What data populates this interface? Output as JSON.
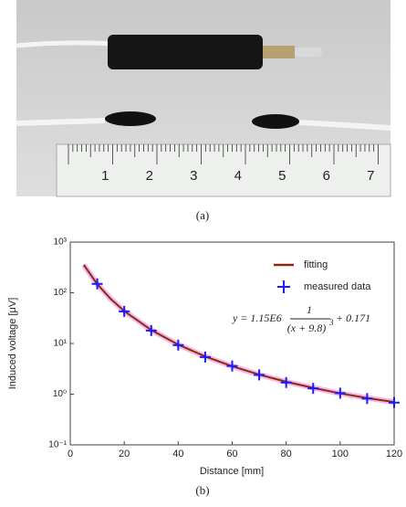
{
  "photo": {
    "ruler_labels": [
      "1",
      "2",
      "3",
      "4",
      "5",
      "6",
      "7"
    ],
    "caption": "(a)"
  },
  "chart_data": {
    "type": "line",
    "caption": "(b)",
    "x_label": "Distance [mm]",
    "y_label": "Induced voltage [μV]",
    "xlim": [
      0,
      120
    ],
    "xticks": [
      0,
      20,
      40,
      60,
      80,
      100,
      120
    ],
    "ylim": [
      0.1,
      1000
    ],
    "log_y": true,
    "yticks": [
      {
        "value": 0.1,
        "label": "10⁻¹"
      },
      {
        "value": 1,
        "label": "10⁰"
      },
      {
        "value": 10,
        "label": "10¹"
      },
      {
        "value": 100,
        "label": "10²"
      },
      {
        "value": 1000,
        "label": "10³"
      }
    ],
    "legend": "upper right",
    "series": [
      {
        "name": "fitting",
        "color": "#8b2a10",
        "style": "line",
        "x": [
          5,
          10,
          15,
          20,
          30,
          40,
          50,
          60,
          70,
          80,
          90,
          100,
          110,
          120
        ],
        "values": [
          354.9,
          148.3,
          75.6,
          43.6,
          18.4,
          9.48,
          5.55,
          3.55,
          2.43,
          1.76,
          1.33,
          1.04,
          0.84,
          0.7
        ]
      },
      {
        "name": "measured data",
        "color": "#1a1aff",
        "style": "plus",
        "x": [
          10,
          20,
          30,
          40,
          50,
          60,
          70,
          80,
          90,
          100,
          110,
          120
        ],
        "values": [
          150,
          43,
          18,
          9.3,
          5.4,
          3.6,
          2.4,
          1.7,
          1.3,
          1.05,
          0.82,
          0.68
        ]
      }
    ],
    "equation": {
      "lhs": "y = 1.15E6",
      "numerator": "1",
      "denominator": "(x + 9.8)",
      "exponent": "3",
      "tail": "+ 0.171"
    }
  }
}
